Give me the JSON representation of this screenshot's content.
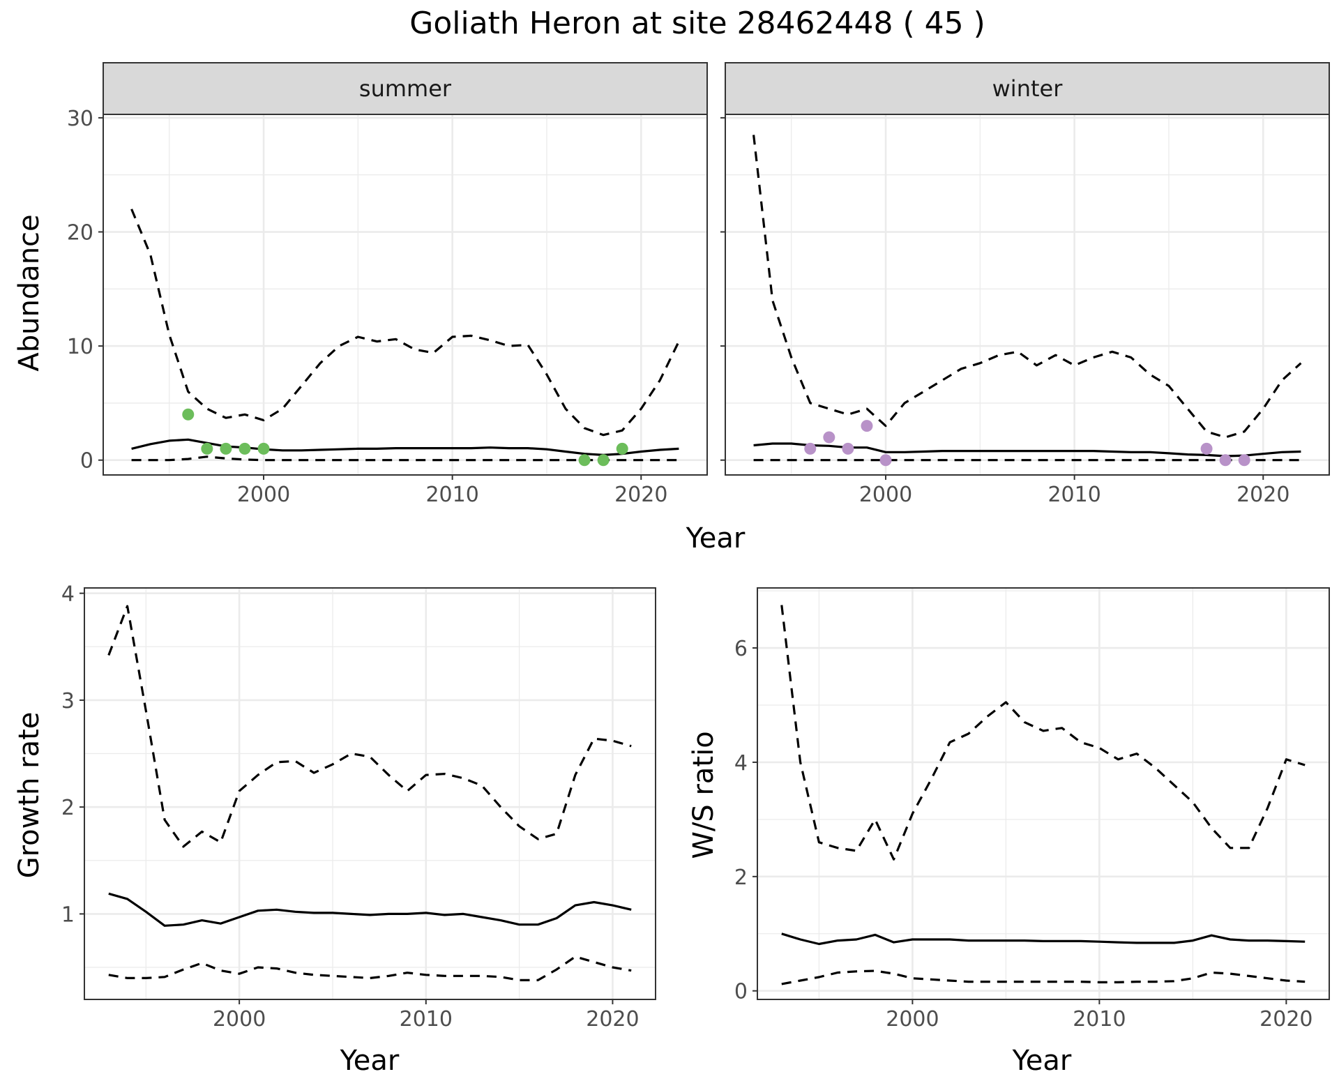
{
  "title": "Goliath Heron at site 28462448 ( 45 )",
  "colors": {
    "summer_points": "#6cbd5b",
    "winter_points": "#b892c8",
    "strip_fill": "#d9d9d9",
    "lines": "#000000"
  },
  "chart_data": [
    {
      "type": "line",
      "panel": "summer",
      "strip_label": "summer",
      "xlabel": "Year",
      "ylabel": "Abundance",
      "xlim": [
        1991.5,
        2023.5
      ],
      "ylim": [
        -1.3,
        30.3
      ],
      "x_ticks": [
        2000,
        2010,
        2020
      ],
      "y_ticks": [
        0,
        10,
        20,
        30
      ],
      "grid": true,
      "series": [
        {
          "role": "mean",
          "x": [
            1993,
            1994,
            1995,
            1996,
            1997,
            1998,
            1999,
            2000,
            2001,
            2002,
            2003,
            2004,
            2005,
            2006,
            2007,
            2008,
            2009,
            2010,
            2011,
            2012,
            2013,
            2014,
            2015,
            2016,
            2017,
            2018,
            2019,
            2020,
            2021,
            2022
          ],
          "values": [
            1.0,
            1.4,
            1.7,
            1.8,
            1.5,
            1.2,
            1.1,
            0.95,
            0.85,
            0.85,
            0.9,
            0.95,
            1.0,
            1.0,
            1.05,
            1.05,
            1.05,
            1.05,
            1.05,
            1.1,
            1.05,
            1.05,
            0.95,
            0.75,
            0.55,
            0.45,
            0.55,
            0.75,
            0.9,
            1.0
          ]
        },
        {
          "role": "upper",
          "x": [
            1993,
            1994,
            1995,
            1996,
            1997,
            1998,
            1999,
            2000,
            2001,
            2002,
            2003,
            2004,
            2005,
            2006,
            2007,
            2008,
            2009,
            2010,
            2011,
            2012,
            2013,
            2014,
            2015,
            2016,
            2017,
            2018,
            2019,
            2020,
            2021,
            2022
          ],
          "values": [
            22,
            18,
            11,
            6,
            4.5,
            3.7,
            4.0,
            3.5,
            4.5,
            6.5,
            8.5,
            10.0,
            10.8,
            10.4,
            10.6,
            9.7,
            9.4,
            10.8,
            10.9,
            10.5,
            10.0,
            10.1,
            7.5,
            4.5,
            2.8,
            2.2,
            2.6,
            4.5,
            7.0,
            10.4
          ]
        },
        {
          "role": "lower",
          "x": [
            1993,
            1994,
            1995,
            1996,
            1997,
            1998,
            1999,
            2000,
            2001,
            2002,
            2003,
            2004,
            2005,
            2006,
            2007,
            2008,
            2009,
            2010,
            2011,
            2012,
            2013,
            2014,
            2015,
            2016,
            2017,
            2018,
            2019,
            2020,
            2021,
            2022
          ],
          "values": [
            0,
            0,
            0,
            0.1,
            0.3,
            0.15,
            0.05,
            0,
            0,
            0,
            0,
            0,
            0,
            0,
            0,
            0,
            0,
            0,
            0,
            0,
            0,
            0,
            0,
            0,
            0,
            0,
            0,
            0,
            0,
            0
          ]
        }
      ],
      "points": {
        "x": [
          1996,
          1997,
          1998,
          1999,
          2000,
          2017,
          2018,
          2019
        ],
        "y": [
          4,
          1,
          1,
          1,
          1,
          0,
          0,
          1
        ]
      }
    },
    {
      "type": "line",
      "panel": "winter",
      "strip_label": "winter",
      "xlabel": "Year",
      "ylabel": "Abundance",
      "xlim": [
        1991.5,
        2023.5
      ],
      "ylim": [
        -1.3,
        30.3
      ],
      "x_ticks": [
        2000,
        2010,
        2020
      ],
      "y_ticks": [
        0,
        10,
        20,
        30
      ],
      "grid": true,
      "series": [
        {
          "role": "mean",
          "x": [
            1993,
            1994,
            1995,
            1996,
            1997,
            1998,
            1999,
            2000,
            2001,
            2002,
            2003,
            2004,
            2005,
            2006,
            2007,
            2008,
            2009,
            2010,
            2011,
            2012,
            2013,
            2014,
            2015,
            2016,
            2017,
            2018,
            2019,
            2020,
            2021,
            2022
          ],
          "values": [
            1.3,
            1.45,
            1.45,
            1.3,
            1.25,
            1.1,
            1.1,
            0.7,
            0.7,
            0.75,
            0.8,
            0.8,
            0.8,
            0.8,
            0.8,
            0.8,
            0.8,
            0.8,
            0.8,
            0.75,
            0.7,
            0.7,
            0.6,
            0.5,
            0.45,
            0.35,
            0.4,
            0.55,
            0.7,
            0.75
          ]
        },
        {
          "role": "upper",
          "x": [
            1993,
            1994,
            1995,
            1996,
            1997,
            1998,
            1999,
            2000,
            2001,
            2002,
            2003,
            2004,
            2005,
            2006,
            2007,
            2008,
            2009,
            2010,
            2011,
            2012,
            2013,
            2014,
            2015,
            2016,
            2017,
            2018,
            2019,
            2020,
            2021,
            2022
          ],
          "values": [
            28.5,
            14,
            9,
            5,
            4.5,
            4.0,
            4.5,
            3.0,
            5.0,
            6.0,
            7.0,
            8.0,
            8.5,
            9.2,
            9.5,
            8.3,
            9.2,
            8.3,
            9.0,
            9.5,
            9.0,
            7.5,
            6.5,
            4.5,
            2.5,
            2.0,
            2.5,
            4.5,
            7.0,
            8.5
          ]
        },
        {
          "role": "lower",
          "x": [
            1993,
            1994,
            1995,
            1996,
            1997,
            1998,
            1999,
            2000,
            2001,
            2002,
            2003,
            2004,
            2005,
            2006,
            2007,
            2008,
            2009,
            2010,
            2011,
            2012,
            2013,
            2014,
            2015,
            2016,
            2017,
            2018,
            2019,
            2020,
            2021,
            2022
          ],
          "values": [
            0,
            0,
            0,
            0,
            0,
            0,
            0,
            0,
            0,
            0,
            0,
            0,
            0,
            0,
            0,
            0,
            0,
            0,
            0,
            0,
            0,
            0,
            0,
            0,
            0,
            0,
            0,
            0,
            0,
            0
          ]
        }
      ],
      "points": {
        "x": [
          1996,
          1997,
          1998,
          1999,
          2000,
          2017,
          2018,
          2019
        ],
        "y": [
          1,
          2,
          1,
          3,
          0,
          1,
          0,
          0
        ]
      }
    },
    {
      "type": "line",
      "panel": "growth",
      "xlabel": "Year",
      "ylabel": "Growth rate",
      "xlim": [
        1991.7,
        2022.3
      ],
      "ylim": [
        0.2,
        4.05
      ],
      "x_ticks": [
        2000,
        2010,
        2020
      ],
      "y_ticks": [
        1,
        2,
        3,
        4
      ],
      "grid": true,
      "series": [
        {
          "role": "mean",
          "x": [
            1993,
            1994,
            1995,
            1996,
            1997,
            1998,
            1999,
            2000,
            2001,
            2002,
            2003,
            2004,
            2005,
            2006,
            2007,
            2008,
            2009,
            2010,
            2011,
            2012,
            2013,
            2014,
            2015,
            2016,
            2017,
            2018,
            2019,
            2020,
            2021
          ],
          "values": [
            1.19,
            1.14,
            1.02,
            0.89,
            0.9,
            0.94,
            0.91,
            0.97,
            1.03,
            1.04,
            1.02,
            1.01,
            1.01,
            1.0,
            0.99,
            1.0,
            1.0,
            1.01,
            0.99,
            1.0,
            0.97,
            0.94,
            0.9,
            0.9,
            0.96,
            1.08,
            1.11,
            1.08,
            1.04
          ]
        },
        {
          "role": "upper",
          "x": [
            1993,
            1994,
            1995,
            1996,
            1997,
            1998,
            1999,
            2000,
            2001,
            2002,
            2003,
            2004,
            2005,
            2006,
            2007,
            2008,
            2009,
            2010,
            2011,
            2012,
            2013,
            2014,
            2015,
            2016,
            2017,
            2018,
            2019,
            2020,
            2021
          ],
          "values": [
            3.42,
            3.88,
            2.9,
            1.88,
            1.63,
            1.77,
            1.67,
            2.15,
            2.3,
            2.42,
            2.43,
            2.32,
            2.4,
            2.5,
            2.47,
            2.3,
            2.15,
            2.3,
            2.31,
            2.27,
            2.2,
            2.0,
            1.82,
            1.7,
            1.75,
            2.3,
            2.64,
            2.62,
            2.57
          ]
        },
        {
          "role": "lower",
          "x": [
            1993,
            1994,
            1995,
            1996,
            1997,
            1998,
            1999,
            2000,
            2001,
            2002,
            2003,
            2004,
            2005,
            2006,
            2007,
            2008,
            2009,
            2010,
            2011,
            2012,
            2013,
            2014,
            2015,
            2016,
            2017,
            2018,
            2019,
            2020,
            2021
          ],
          "values": [
            0.43,
            0.4,
            0.4,
            0.41,
            0.48,
            0.54,
            0.47,
            0.44,
            0.5,
            0.49,
            0.45,
            0.43,
            0.42,
            0.41,
            0.4,
            0.42,
            0.45,
            0.43,
            0.42,
            0.42,
            0.42,
            0.41,
            0.38,
            0.38,
            0.48,
            0.6,
            0.55,
            0.5,
            0.47
          ]
        }
      ]
    },
    {
      "type": "line",
      "panel": "ratio",
      "xlabel": "Year",
      "ylabel": "W/S ratio",
      "xlim": [
        1991.7,
        2022.3
      ],
      "ylim": [
        -0.15,
        7.05
      ],
      "x_ticks": [
        2000,
        2010,
        2020
      ],
      "y_ticks": [
        0,
        2,
        4,
        6
      ],
      "grid": true,
      "series": [
        {
          "role": "mean",
          "x": [
            1993,
            1994,
            1995,
            1996,
            1997,
            1998,
            1999,
            2000,
            2001,
            2002,
            2003,
            2004,
            2005,
            2006,
            2007,
            2008,
            2009,
            2010,
            2011,
            2012,
            2013,
            2014,
            2015,
            2016,
            2017,
            2018,
            2019,
            2020,
            2021
          ],
          "values": [
            1.0,
            0.9,
            0.82,
            0.88,
            0.9,
            0.98,
            0.85,
            0.9,
            0.9,
            0.9,
            0.88,
            0.88,
            0.88,
            0.88,
            0.87,
            0.87,
            0.87,
            0.86,
            0.85,
            0.84,
            0.84,
            0.84,
            0.88,
            0.97,
            0.9,
            0.88,
            0.88,
            0.87,
            0.86
          ]
        },
        {
          "role": "upper",
          "x": [
            1993,
            1994,
            1995,
            1996,
            1997,
            1998,
            1999,
            2000,
            2001,
            2002,
            2003,
            2004,
            2005,
            2006,
            2007,
            2008,
            2009,
            2010,
            2011,
            2012,
            2013,
            2014,
            2015,
            2016,
            2017,
            2018,
            2019,
            2020,
            2021
          ],
          "values": [
            6.75,
            4.0,
            2.6,
            2.5,
            2.45,
            3.0,
            2.3,
            3.1,
            3.7,
            4.35,
            4.5,
            4.8,
            5.05,
            4.7,
            4.55,
            4.6,
            4.35,
            4.25,
            4.05,
            4.15,
            3.9,
            3.6,
            3.3,
            2.85,
            2.5,
            2.5,
            3.2,
            4.05,
            3.95
          ]
        },
        {
          "role": "lower",
          "x": [
            1993,
            1994,
            1995,
            1996,
            1997,
            1998,
            1999,
            2000,
            2001,
            2002,
            2003,
            2004,
            2005,
            2006,
            2007,
            2008,
            2009,
            2010,
            2011,
            2012,
            2013,
            2014,
            2015,
            2016,
            2017,
            2018,
            2019,
            2020,
            2021
          ],
          "values": [
            0.12,
            0.18,
            0.24,
            0.32,
            0.34,
            0.35,
            0.3,
            0.22,
            0.2,
            0.18,
            0.16,
            0.16,
            0.16,
            0.16,
            0.16,
            0.16,
            0.16,
            0.15,
            0.15,
            0.16,
            0.16,
            0.17,
            0.22,
            0.32,
            0.3,
            0.26,
            0.22,
            0.18,
            0.16
          ]
        }
      ]
    }
  ]
}
